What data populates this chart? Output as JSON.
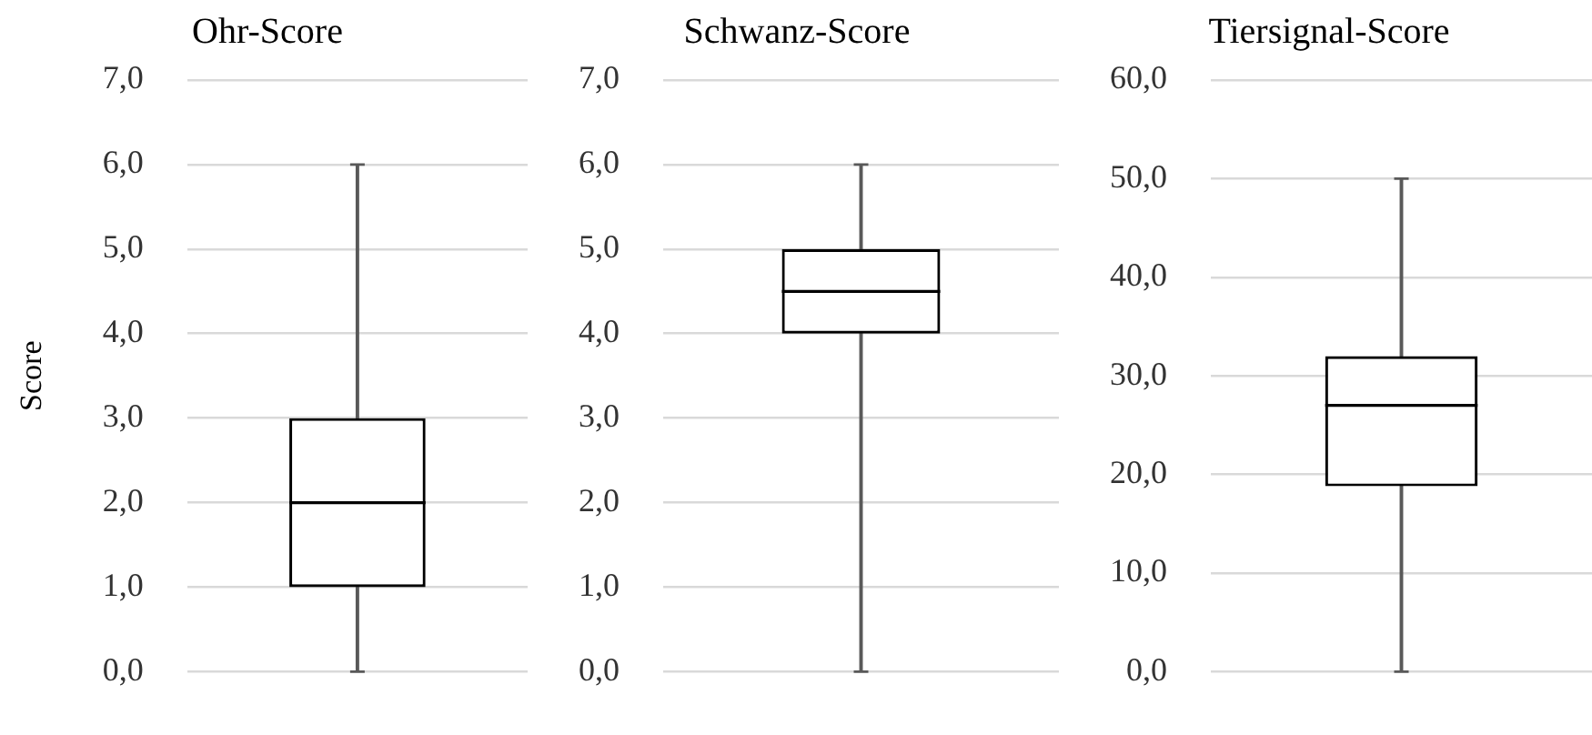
{
  "chart_data": [
    {
      "type": "box",
      "title": "Ohr-Score",
      "ylabel": "Score",
      "categories": [
        null
      ],
      "boxes": [
        {
          "low": 0,
          "q1": 1,
          "median": 2,
          "q3": 3,
          "high": 6
        }
      ],
      "ylim": [
        0,
        7
      ],
      "yticks": [
        {
          "value": 0,
          "label": "0,0"
        },
        {
          "value": 1,
          "label": "1,0"
        },
        {
          "value": 2,
          "label": "2,0"
        },
        {
          "value": 3,
          "label": "3,0"
        },
        {
          "value": 4,
          "label": "4,0"
        },
        {
          "value": 5,
          "label": "5,0"
        },
        {
          "value": 6,
          "label": "6,0"
        },
        {
          "value": 7,
          "label": "7,0"
        }
      ],
      "grid": "y",
      "tick_labels": "y"
    },
    {
      "type": "box",
      "title": "Schwanz-Score",
      "categories": [
        null
      ],
      "boxes": [
        {
          "low": 0,
          "q1": 4,
          "median": 4.5,
          "q3": 5,
          "high": 6
        }
      ],
      "ylim": [
        0,
        7
      ],
      "yticks": [
        {
          "value": 0,
          "label": "0,0"
        },
        {
          "value": 1,
          "label": "1,0"
        },
        {
          "value": 2,
          "label": "2,0"
        },
        {
          "value": 3,
          "label": "3,0"
        },
        {
          "value": 4,
          "label": "4,0"
        },
        {
          "value": 5,
          "label": "5,0"
        },
        {
          "value": 6,
          "label": "6,0"
        },
        {
          "value": 7,
          "label": "7,0"
        }
      ],
      "grid": "y",
      "tick_labels": "y"
    },
    {
      "type": "box",
      "title": "Tiersignal-Score",
      "categories": [
        null
      ],
      "boxes": [
        {
          "low": 0,
          "q1": 18.8,
          "median": 27,
          "q3": 32,
          "high": 50
        }
      ],
      "ylim": [
        0,
        60
      ],
      "yticks": [
        {
          "value": 0,
          "label": "0,0"
        },
        {
          "value": 10,
          "label": "10,0"
        },
        {
          "value": 20,
          "label": "20,0"
        },
        {
          "value": 30,
          "label": "30,0"
        },
        {
          "value": 40,
          "label": "40,0"
        },
        {
          "value": 50,
          "label": "50,0"
        },
        {
          "value": 60,
          "label": "60,0"
        }
      ],
      "grid": "y",
      "tick_labels": "y"
    }
  ]
}
